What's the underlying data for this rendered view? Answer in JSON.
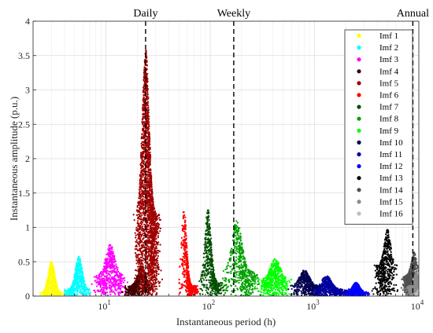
{
  "chart_data": {
    "type": "scatter",
    "xlabel": "Instantaneous period (h)",
    "ylabel": "Instantaneous amplitude (p.u.)",
    "xscale": "log",
    "xlim": [
      2,
      10000
    ],
    "ylim": [
      0,
      4
    ],
    "yticks": [
      "0",
      "0.5",
      "1",
      "1.5",
      "2",
      "2.5",
      "3",
      "3.5",
      "4"
    ],
    "xticks": [
      {
        "value": 10,
        "base": "10",
        "exp": "1"
      },
      {
        "value": 100,
        "base": "10",
        "exp": "2"
      },
      {
        "value": 1000,
        "base": "10",
        "exp": "3"
      },
      {
        "value": 10000,
        "base": "10",
        "exp": "4"
      }
    ],
    "grid": true,
    "legend_position": "top-right",
    "reference_lines": [
      {
        "label": "Daily",
        "x": 24
      },
      {
        "label": "Weekly",
        "x": 168
      },
      {
        "label": "Annual",
        "x": 8760
      }
    ],
    "series": [
      {
        "name": "Imf 1",
        "color": "#ffff00",
        "x_range": [
          2.2,
          4.2
        ],
        "peak_x": 3,
        "peak_amp": 0.5,
        "typical_amp": 0.05
      },
      {
        "name": "Imf 2",
        "color": "#00ffff",
        "x_range": [
          3.8,
          7.5
        ],
        "peak_x": 5.5,
        "peak_amp": 0.58,
        "typical_amp": 0.1
      },
      {
        "name": "Imf 3",
        "color": "#ff00ff",
        "x_range": [
          7,
          17
        ],
        "peak_x": 11,
        "peak_amp": 0.75,
        "typical_amp": 0.3
      },
      {
        "name": "Imf 4",
        "color": "#400000",
        "x_range": [
          14,
          30
        ],
        "peak_x": 22,
        "peak_amp": 0.45,
        "typical_amp": 0.15
      },
      {
        "name": "Imf 5",
        "color": "#a00000",
        "x_range": [
          18,
          35
        ],
        "peak_x": 24,
        "peak_amp": 3.6,
        "typical_amp": 1.2
      },
      {
        "name": "Imf 6",
        "color": "#ff0000",
        "x_range": [
          48,
          80
        ],
        "peak_x": 56,
        "peak_amp": 1.28,
        "typical_amp": 0.15
      },
      {
        "name": "Imf 7",
        "color": "#005000",
        "x_range": [
          75,
          140
        ],
        "peak_x": 95,
        "peak_amp": 1.26,
        "typical_amp": 0.2
      },
      {
        "name": "Imf 8",
        "color": "#00a000",
        "x_range": [
          120,
          320
        ],
        "peak_x": 180,
        "peak_amp": 1.1,
        "typical_amp": 0.35
      },
      {
        "name": "Imf 9",
        "color": "#00ff00",
        "x_range": [
          260,
          650
        ],
        "peak_x": 420,
        "peak_amp": 0.55,
        "typical_amp": 0.25
      },
      {
        "name": "Imf 10",
        "color": "#000050",
        "x_range": [
          550,
          1400
        ],
        "peak_x": 800,
        "peak_amp": 0.38,
        "typical_amp": 0.15
      },
      {
        "name": "Imf 11",
        "color": "#0000a0",
        "x_range": [
          900,
          2300
        ],
        "peak_x": 1300,
        "peak_amp": 0.3,
        "typical_amp": 0.1
      },
      {
        "name": "Imf 12",
        "color": "#0000ff",
        "x_range": [
          1800,
          3500
        ],
        "peak_x": 2500,
        "peak_amp": 0.2,
        "typical_amp": 0.06
      },
      {
        "name": "Imf 13",
        "color": "#000000",
        "x_range": [
          3500,
          6500
        ],
        "peak_x": 5000,
        "peak_amp": 0.97,
        "typical_amp": 0.45
      },
      {
        "name": "Imf 14",
        "color": "#505050",
        "x_range": [
          6500,
          11000
        ],
        "peak_x": 9000,
        "peak_amp": 0.65,
        "typical_amp": 0.3
      },
      {
        "name": "Imf 15",
        "color": "#8c8c8c",
        "x_range": [
          7500,
          11000
        ],
        "peak_x": 9500,
        "peak_amp": 0.35,
        "typical_amp": 0.15
      },
      {
        "name": "Imf 16",
        "color": "#bebebe",
        "x_range": [
          9000,
          11000
        ],
        "peak_x": 10000,
        "peak_amp": 0.1,
        "typical_amp": 0.04
      }
    ]
  }
}
